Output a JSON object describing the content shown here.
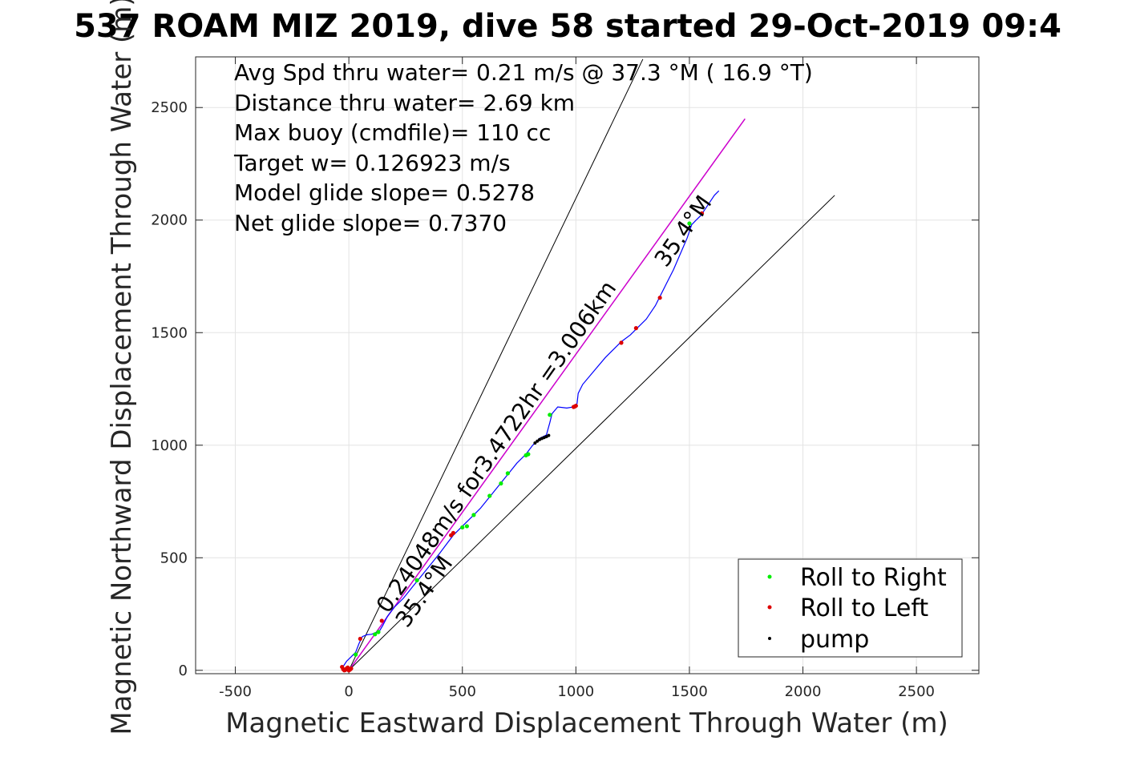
{
  "chart_data": {
    "type": "line",
    "title": "537 ROAM MIZ 2019, dive 58 started 29-Oct-2019 09:4",
    "xlabel": "Magnetic Eastward Displacement Through Water (m)",
    "ylabel": "Magnetic Northward Displacement Through Water (m)",
    "xlim": [
      -675,
      2775
    ],
    "ylim": [
      -15,
      2725
    ],
    "xticks": [
      -500,
      0,
      500,
      1000,
      1500,
      2000,
      2500
    ],
    "yticks": [
      0,
      500,
      1000,
      1500,
      2000,
      2500
    ],
    "xtick_labels": [
      "-500",
      "0",
      "500",
      "1000",
      "1500",
      "2000",
      "2500"
    ],
    "ytick_labels": [
      "0",
      "500",
      "1000",
      "1500",
      "2000",
      "2500"
    ],
    "grid": true,
    "annotations": [
      "Avg Spd thru water=  0.21 m/s @  37.3 °M ( 16.9 °T)",
      "Distance thru water=  2.69 km",
      "Max buoy (cmdfile)= 110 cc",
      "Target w= 0.126923 m/s",
      "Model glide slope= 0.5278",
      "Net glide slope= 0.7370"
    ],
    "rotated_labels": {
      "heading_top": "35.4°M",
      "heading_bottom": "35.4°M",
      "speed_distance": "0.24048m/s for3.4722hr =3.006km"
    },
    "reference_lines": [
      {
        "name": "cone-left",
        "color": "#000000",
        "x": [
          0,
          1295
        ],
        "y": [
          0,
          2715
        ]
      },
      {
        "name": "cone-right",
        "color": "#000000",
        "x": [
          0,
          2140
        ],
        "y": [
          0,
          2110
        ]
      },
      {
        "name": "heading-line",
        "color": "#cc00cc",
        "x": [
          0,
          1745
        ],
        "y": [
          0,
          2450
        ]
      }
    ],
    "track": {
      "name": "Track",
      "color": "#0000ff",
      "x": [
        -30,
        -10,
        10,
        30,
        45,
        60,
        80,
        100,
        120,
        135,
        150,
        170,
        200,
        240,
        280,
        320,
        360,
        400,
        430,
        460,
        500,
        540,
        580,
        620,
        660,
        700,
        740,
        780,
        810,
        840,
        870,
        885,
        895,
        920,
        960,
        990,
        1005,
        1010,
        1030,
        1080,
        1130,
        1170,
        1200,
        1240,
        1270,
        1310,
        1350,
        1370,
        1400,
        1430,
        1460,
        1490,
        1510,
        1530,
        1550,
        1570,
        1590,
        1610,
        1630
      ],
      "y": [
        10,
        40,
        60,
        80,
        120,
        150,
        158,
        160,
        168,
        175,
        200,
        240,
        280,
        320,
        370,
        420,
        470,
        520,
        560,
        600,
        640,
        680,
        720,
        770,
        820,
        870,
        920,
        960,
        1000,
        1030,
        1045,
        1100,
        1140,
        1170,
        1165,
        1170,
        1185,
        1230,
        1270,
        1330,
        1390,
        1430,
        1460,
        1490,
        1520,
        1560,
        1620,
        1660,
        1720,
        1780,
        1850,
        1920,
        1980,
        2000,
        2020,
        2050,
        2080,
        2110,
        2130
      ]
    },
    "legend_position": "bottom-right",
    "series": [
      {
        "name": "Roll to Right",
        "color": "#00ee00",
        "x": [
          30,
          115,
          130,
          300,
          500,
          520,
          550,
          620,
          670,
          700,
          780,
          790,
          885,
          1500
        ],
        "y": [
          70,
          160,
          170,
          400,
          635,
          640,
          690,
          775,
          830,
          875,
          955,
          960,
          1135,
          1985
        ]
      },
      {
        "name": "Roll to Left",
        "color": "#dd0000",
        "x": [
          -30,
          -25,
          -20,
          -15,
          -10,
          -5,
          0,
          5,
          10,
          50,
          145,
          450,
          460,
          990,
          995,
          1000,
          1200,
          1265,
          1370,
          1555
        ],
        "y": [
          15,
          5,
          0,
          2,
          8,
          12,
          0,
          3,
          8,
          140,
          220,
          600,
          610,
          1170,
          1172,
          1175,
          1455,
          1520,
          1655,
          2030
        ]
      },
      {
        "name": "pump",
        "color": "#000000",
        "x": [
          820,
          830,
          840,
          850,
          860,
          870,
          880
        ],
        "y": [
          1010,
          1018,
          1025,
          1030,
          1034,
          1038,
          1043
        ]
      }
    ]
  }
}
